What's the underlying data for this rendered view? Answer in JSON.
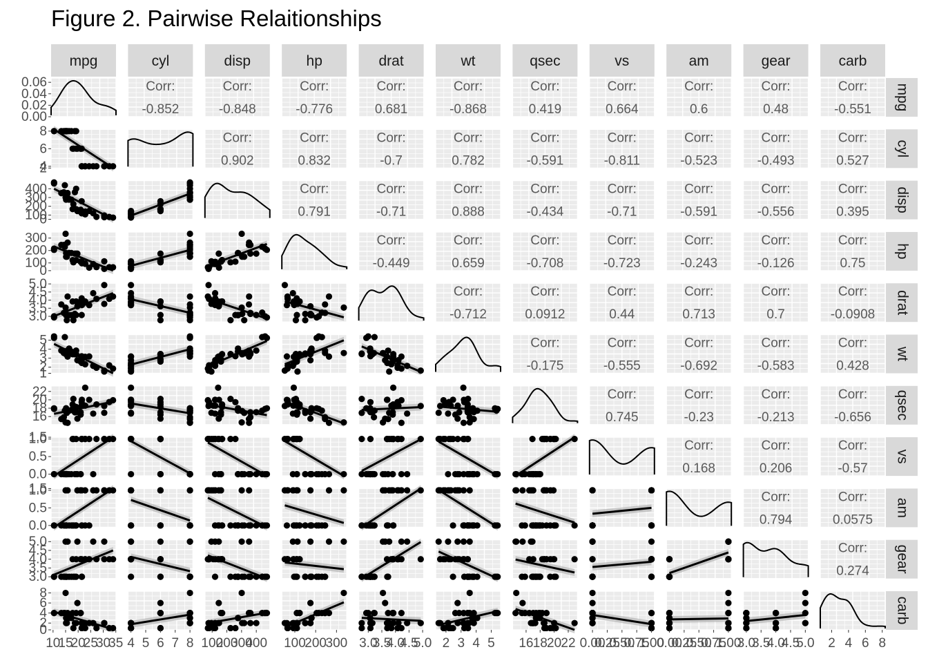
{
  "title": "Figure 2. Pairwise Relaitionships",
  "chart_data": {
    "type": "scatter-matrix",
    "variables": [
      "mpg",
      "cyl",
      "disp",
      "hp",
      "drat",
      "wt",
      "qsec",
      "vs",
      "am",
      "gear",
      "carb"
    ],
    "corr_label": "Corr:",
    "correlations": [
      [
        null,
        -0.852,
        -0.848,
        -0.776,
        0.681,
        -0.868,
        0.419,
        0.664,
        0.6,
        0.48,
        -0.551
      ],
      [
        null,
        null,
        0.902,
        0.832,
        -0.7,
        0.782,
        -0.591,
        -0.811,
        -0.523,
        -0.493,
        0.527
      ],
      [
        null,
        null,
        null,
        0.791,
        -0.71,
        0.888,
        -0.434,
        -0.71,
        -0.591,
        -0.556,
        0.395
      ],
      [
        null,
        null,
        null,
        null,
        -0.449,
        0.659,
        -0.708,
        -0.723,
        -0.243,
        -0.126,
        0.75
      ],
      [
        null,
        null,
        null,
        null,
        null,
        -0.712,
        0.0912,
        0.44,
        0.713,
        0.7,
        -0.0908
      ],
      [
        null,
        null,
        null,
        null,
        null,
        null,
        -0.175,
        -0.555,
        -0.692,
        -0.583,
        0.428
      ],
      [
        null,
        null,
        null,
        null,
        null,
        null,
        null,
        0.745,
        -0.23,
        -0.213,
        -0.656
      ],
      [
        null,
        null,
        null,
        null,
        null,
        null,
        null,
        null,
        0.168,
        0.206,
        -0.57
      ],
      [
        null,
        null,
        null,
        null,
        null,
        null,
        null,
        null,
        null,
        0.794,
        0.0575
      ],
      [
        null,
        null,
        null,
        null,
        null,
        null,
        null,
        null,
        null,
        null,
        0.274
      ],
      [
        null,
        null,
        null,
        null,
        null,
        null,
        null,
        null,
        null,
        null,
        null
      ]
    ],
    "ranges": {
      "mpg": [
        10.4,
        33.9
      ],
      "cyl": [
        4,
        8
      ],
      "disp": [
        71.1,
        472
      ],
      "hp": [
        52,
        335
      ],
      "drat": [
        2.76,
        4.93
      ],
      "wt": [
        1.513,
        5.424
      ],
      "qsec": [
        14.5,
        22.9
      ],
      "vs": [
        0,
        1
      ],
      "am": [
        0,
        1
      ],
      "gear": [
        3,
        5
      ],
      "carb": [
        1,
        8
      ]
    },
    "x_tick_labels": {
      "mpg": [
        "10",
        "15",
        "20",
        "25",
        "30",
        "35"
      ],
      "cyl": [
        "4",
        "5",
        "6",
        "7",
        "8"
      ],
      "disp": [
        "100",
        "200",
        "300",
        "400"
      ],
      "hp": [
        "100",
        "200",
        "300"
      ],
      "drat": [
        "3.0",
        "3.5",
        "4.0",
        "4.5",
        "5.0"
      ],
      "wt": [
        "2",
        "3",
        "4",
        "5"
      ],
      "qsec": [
        "16",
        "18",
        "20",
        "22"
      ],
      "vs": [
        "0.00",
        "0.25",
        "0.50",
        "0.75",
        "1.00"
      ],
      "am": [
        "0.00",
        "0.25",
        "0.50",
        "0.75",
        "1.00"
      ],
      "gear": [
        "3.0",
        "3.5",
        "4.0",
        "4.5",
        "5.0"
      ],
      "carb": [
        "2",
        "4",
        "6",
        "8"
      ]
    },
    "y_tick_labels": {
      "mpg": [
        "0.00",
        "0.02",
        "0.04",
        "0.06"
      ],
      "cyl": [
        "2",
        "4",
        "6",
        "8"
      ],
      "disp": [
        "0",
        "100",
        "200",
        "300",
        "400"
      ],
      "hp": [
        "0",
        "100",
        "200",
        "300"
      ],
      "drat": [
        "3.0",
        "3.5",
        "4.0",
        "4.5",
        "5.0"
      ],
      "wt": [
        "1",
        "2",
        "3",
        "4",
        "5"
      ],
      "qsec": [
        "16",
        "18",
        "20",
        "22"
      ],
      "vs": [
        "0.0",
        "0.5",
        "1.0",
        "1.5"
      ],
      "am": [
        "0.0",
        "0.5",
        "1.0",
        "1.5"
      ],
      "gear": [
        "3.0",
        "3.5",
        "4.0",
        "4.5",
        "5.0"
      ],
      "carb": [
        "0",
        "2",
        "4",
        "6",
        "8"
      ]
    },
    "data": {
      "mpg": [
        21,
        21,
        22.8,
        21.4,
        18.7,
        18.1,
        14.3,
        24.4,
        22.8,
        19.2,
        17.8,
        16.4,
        17.3,
        15.2,
        10.4,
        10.4,
        14.7,
        32.4,
        30.4,
        33.9,
        21.5,
        15.5,
        15.2,
        13.3,
        19.2,
        27.3,
        26,
        30.4,
        15.8,
        19.7,
        15,
        21.4
      ],
      "cyl": [
        6,
        6,
        4,
        6,
        8,
        6,
        8,
        4,
        4,
        6,
        6,
        8,
        8,
        8,
        8,
        8,
        8,
        4,
        4,
        4,
        4,
        8,
        8,
        8,
        8,
        4,
        4,
        4,
        8,
        6,
        8,
        4
      ],
      "disp": [
        160,
        160,
        108,
        258,
        360,
        225,
        360,
        146.7,
        140.8,
        167.6,
        167.6,
        275.8,
        275.8,
        275.8,
        472,
        460,
        440,
        78.7,
        75.7,
        71.1,
        120.1,
        318,
        304,
        350,
        400,
        79,
        120.3,
        95.1,
        351,
        145,
        301,
        121
      ],
      "hp": [
        110,
        110,
        93,
        110,
        175,
        105,
        245,
        62,
        95,
        123,
        123,
        180,
        180,
        180,
        205,
        215,
        230,
        66,
        52,
        65,
        97,
        150,
        150,
        245,
        175,
        66,
        91,
        113,
        264,
        175,
        335,
        109
      ],
      "drat": [
        3.9,
        3.9,
        3.85,
        3.08,
        3.15,
        2.76,
        3.21,
        3.69,
        3.92,
        3.92,
        3.92,
        3.07,
        3.07,
        3.07,
        2.93,
        3,
        3.23,
        4.08,
        4.93,
        4.22,
        3.7,
        2.76,
        3.15,
        3.73,
        3.08,
        4.08,
        4.43,
        3.77,
        4.22,
        3.62,
        3.54,
        4.11
      ],
      "wt": [
        2.62,
        2.875,
        2.32,
        3.215,
        3.44,
        3.46,
        3.57,
        3.19,
        3.15,
        3.44,
        3.44,
        4.07,
        3.73,
        3.78,
        5.25,
        5.424,
        5.345,
        2.2,
        1.615,
        1.835,
        2.465,
        3.52,
        3.435,
        3.84,
        3.845,
        1.935,
        2.14,
        1.513,
        3.17,
        2.77,
        3.57,
        2.78
      ],
      "qsec": [
        16.46,
        17.02,
        18.61,
        19.44,
        17.02,
        20.22,
        15.84,
        20,
        22.9,
        18.3,
        18.9,
        17.4,
        17.6,
        18,
        17.98,
        17.82,
        17.42,
        19.47,
        18.52,
        19.9,
        20.01,
        16.87,
        17.3,
        15.41,
        17.05,
        18.9,
        16.7,
        16.9,
        14.5,
        15.5,
        14.6,
        18.6
      ],
      "vs": [
        0,
        0,
        1,
        1,
        0,
        1,
        0,
        1,
        1,
        1,
        1,
        0,
        0,
        0,
        0,
        0,
        0,
        1,
        1,
        1,
        1,
        0,
        0,
        0,
        0,
        1,
        0,
        1,
        0,
        0,
        0,
        1
      ],
      "am": [
        1,
        1,
        1,
        0,
        0,
        0,
        0,
        0,
        0,
        0,
        0,
        0,
        0,
        0,
        0,
        0,
        0,
        1,
        1,
        1,
        0,
        0,
        0,
        0,
        0,
        1,
        1,
        1,
        1,
        1,
        1,
        1
      ],
      "gear": [
        4,
        4,
        4,
        3,
        3,
        3,
        3,
        4,
        4,
        4,
        4,
        3,
        3,
        3,
        3,
        3,
        3,
        4,
        4,
        4,
        3,
        3,
        3,
        3,
        3,
        4,
        5,
        5,
        5,
        5,
        5,
        4
      ],
      "carb": [
        4,
        4,
        1,
        1,
        2,
        1,
        4,
        2,
        2,
        4,
        4,
        3,
        3,
        3,
        4,
        4,
        4,
        1,
        2,
        1,
        1,
        2,
        2,
        4,
        2,
        1,
        2,
        2,
        4,
        6,
        8,
        2
      ]
    }
  }
}
